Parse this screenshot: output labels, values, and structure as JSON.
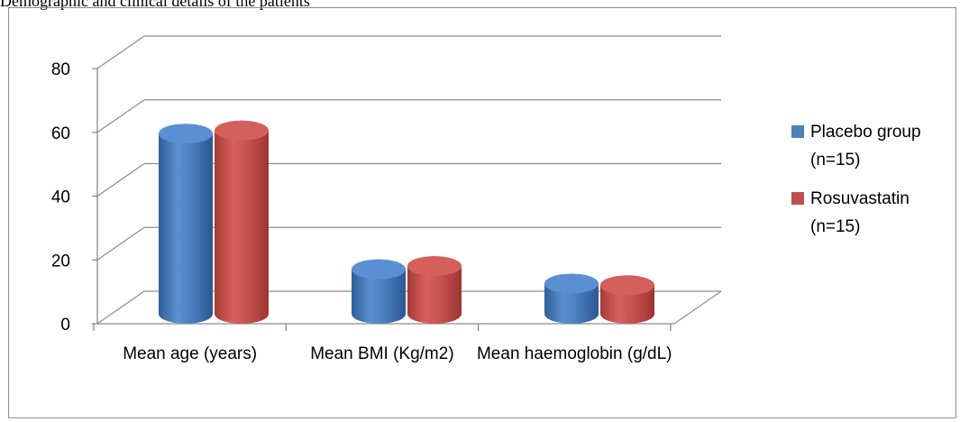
{
  "caption": "Demographic and clinical details of the patients",
  "chart_data": {
    "type": "bar",
    "categories": [
      "Mean age (years)",
      "Mean BMI (Kg/m2)",
      "Mean haemoglobin (g/dL)"
    ],
    "series": [
      {
        "name": "Placebo group (n=15)",
        "values": [
          61,
          18.5,
          14
        ],
        "color": "#4F81BD"
      },
      {
        "name": "Rosuvastatin (n=15)",
        "values": [
          62,
          19.5,
          13.5
        ],
        "color": "#C0504D"
      }
    ],
    "yticks": [
      0,
      20,
      40,
      60,
      80
    ],
    "ylim": [
      0,
      80
    ],
    "grid": true,
    "legend": "right",
    "legend_lines": [
      [
        "Placebo group",
        "(n=15)"
      ],
      [
        "Rosuvastatin",
        "(n=15)"
      ]
    ]
  }
}
